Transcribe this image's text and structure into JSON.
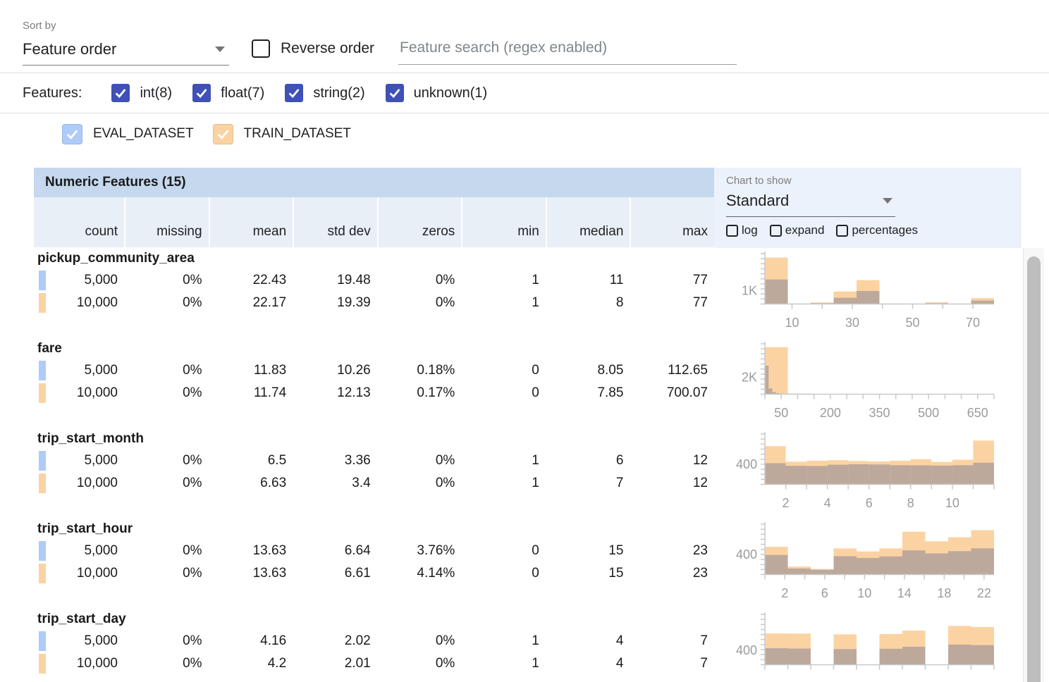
{
  "toolbar": {
    "sort_by_label": "Sort by",
    "sort_by_value": "Feature order",
    "reverse_order_label": "Reverse order",
    "search_placeholder": "Feature search (regex enabled)"
  },
  "features_filter": {
    "label": "Features:",
    "types": [
      {
        "label": "int(8)",
        "checked": true
      },
      {
        "label": "float(7)",
        "checked": true
      },
      {
        "label": "string(2)",
        "checked": true
      },
      {
        "label": "unknown(1)",
        "checked": true
      }
    ]
  },
  "datasets": [
    {
      "name": "EVAL_DATASET",
      "label": "EVAL_DATASET",
      "checked": true,
      "color": "#aecbfa"
    },
    {
      "name": "TRAIN_DATASET",
      "label": "TRAIN_DATASET",
      "checked": true,
      "color": "#fbd3a2"
    }
  ],
  "table": {
    "title": "Numeric Features (15)",
    "columns": [
      "count",
      "missing",
      "mean",
      "std dev",
      "zeros",
      "min",
      "median",
      "max"
    ],
    "chart_controls": {
      "label": "Chart to show",
      "value": "Standard",
      "options": [
        {
          "label": "log",
          "checked": false
        },
        {
          "label": "expand",
          "checked": false
        },
        {
          "label": "percentages",
          "checked": false
        }
      ]
    },
    "features": [
      {
        "name": "pickup_community_area",
        "rows": [
          {
            "dataset": "EVAL_DATASET",
            "values": [
              "5,000",
              "0%",
              "22.43",
              "19.48",
              "0%",
              "1",
              "11",
              "77"
            ]
          },
          {
            "dataset": "TRAIN_DATASET",
            "values": [
              "10,000",
              "0%",
              "22.17",
              "19.39",
              "0%",
              "1",
              "8",
              "77"
            ]
          }
        ]
      },
      {
        "name": "fare",
        "rows": [
          {
            "dataset": "EVAL_DATASET",
            "values": [
              "5,000",
              "0%",
              "11.83",
              "10.26",
              "0.18%",
              "0",
              "8.05",
              "112.65"
            ]
          },
          {
            "dataset": "TRAIN_DATASET",
            "values": [
              "10,000",
              "0%",
              "11.74",
              "12.13",
              "0.17%",
              "0",
              "7.85",
              "700.07"
            ]
          }
        ]
      },
      {
        "name": "trip_start_month",
        "rows": [
          {
            "dataset": "EVAL_DATASET",
            "values": [
              "5,000",
              "0%",
              "6.5",
              "3.36",
              "0%",
              "1",
              "6",
              "12"
            ]
          },
          {
            "dataset": "TRAIN_DATASET",
            "values": [
              "10,000",
              "0%",
              "6.63",
              "3.4",
              "0%",
              "1",
              "7",
              "12"
            ]
          }
        ]
      },
      {
        "name": "trip_start_hour",
        "rows": [
          {
            "dataset": "EVAL_DATASET",
            "values": [
              "5,000",
              "0%",
              "13.63",
              "6.64",
              "3.76%",
              "0",
              "15",
              "23"
            ]
          },
          {
            "dataset": "TRAIN_DATASET",
            "values": [
              "10,000",
              "0%",
              "13.63",
              "6.61",
              "4.14%",
              "0",
              "15",
              "23"
            ]
          }
        ]
      },
      {
        "name": "trip_start_day",
        "rows": [
          {
            "dataset": "EVAL_DATASET",
            "values": [
              "5,000",
              "0%",
              "4.16",
              "2.02",
              "0%",
              "1",
              "4",
              "7"
            ]
          },
          {
            "dataset": "TRAIN_DATASET",
            "values": [
              "10,000",
              "0%",
              "4.2",
              "2.01",
              "0%",
              "1",
              "4",
              "7"
            ]
          }
        ]
      }
    ]
  },
  "chart_data": [
    {
      "type": "bar",
      "feature": "pickup_community_area",
      "x_domain": [
        1,
        77
      ],
      "x_tick_labels": [
        10,
        30,
        50,
        70
      ],
      "x_minor_ticks": {
        "start": 10,
        "step": 10,
        "end": 70
      },
      "y_max": 3800,
      "y_axis_label": {
        "text": "1K",
        "value": 1000
      },
      "series": [
        {
          "name": "TRAIN_DATASET",
          "bin_start": 1,
          "bin_width": 7.6,
          "counts": [
            3500,
            40,
            120,
            950,
            1800,
            30,
            20,
            130,
            20,
            450
          ]
        },
        {
          "name": "EVAL_DATASET",
          "bin_start": 1,
          "bin_width": 7.6,
          "counts": [
            1850,
            25,
            60,
            470,
            980,
            15,
            10,
            60,
            10,
            260
          ]
        }
      ]
    },
    {
      "type": "bar",
      "feature": "fare",
      "x_domain": [
        0,
        700
      ],
      "x_tick_labels": [
        50,
        200,
        350,
        500,
        650
      ],
      "x_minor_ticks": {
        "start": 0,
        "step": 50,
        "end": 700
      },
      "y_max": 6000,
      "y_axis_label": {
        "text": "2K",
        "value": 2000
      },
      "series": [
        {
          "name": "TRAIN_DATASET",
          "bin_start": 0,
          "bin_width": 70,
          "counts": [
            5600,
            80,
            20,
            10,
            5,
            3,
            2,
            2,
            1,
            2
          ]
        },
        {
          "name": "EVAL_DATASET",
          "bin_start": 0,
          "bin_width": 11.265,
          "counts": [
            3400,
            700,
            250,
            120,
            60,
            30,
            20,
            10,
            5,
            5
          ]
        }
      ]
    },
    {
      "type": "bar",
      "feature": "trip_start_month",
      "x_domain": [
        1,
        12
      ],
      "x_tick_labels": [
        2,
        4,
        6,
        8,
        10
      ],
      "x_minor_ticks": {
        "start": 2,
        "step": 1,
        "end": 12
      },
      "y_max": 1000,
      "y_axis_label": {
        "text": "400",
        "value": 400
      },
      "series": [
        {
          "name": "TRAIN_DATASET",
          "bin_start": 1,
          "bin_width": 1,
          "counts": [
            760,
            450,
            470,
            480,
            465,
            455,
            470,
            500,
            445,
            490,
            870
          ]
        },
        {
          "name": "EVAL_DATASET",
          "bin_start": 1,
          "bin_width": 1,
          "counts": [
            420,
            370,
            365,
            390,
            400,
            395,
            380,
            378,
            372,
            380,
            430
          ]
        }
      ]
    },
    {
      "type": "bar",
      "feature": "trip_start_hour",
      "x_domain": [
        0,
        23
      ],
      "x_tick_labels": [
        2,
        6,
        10,
        14,
        18,
        22
      ],
      "x_minor_ticks": {
        "start": 0,
        "step": 2,
        "end": 22
      },
      "y_max": 1000,
      "y_axis_label": {
        "text": "400",
        "value": 400
      },
      "series": [
        {
          "name": "TRAIN_DATASET",
          "bin_start": 0,
          "bin_width": 2.3,
          "counts": [
            550,
            160,
            110,
            520,
            460,
            520,
            850,
            660,
            740,
            880
          ]
        },
        {
          "name": "EVAL_DATASET",
          "bin_start": 0,
          "bin_width": 2.3,
          "counts": [
            390,
            120,
            95,
            365,
            330,
            360,
            480,
            420,
            465,
            520
          ]
        }
      ]
    },
    {
      "type": "bar",
      "feature": "trip_start_day",
      "x_domain": [
        1,
        7
      ],
      "x_tick_labels": [],
      "x_minor_ticks": {
        "start": 1,
        "step": 0.6,
        "end": 7
      },
      "y_max": 1400,
      "y_axis_label": {
        "text": "400",
        "value": 400
      },
      "series": [
        {
          "name": "TRAIN_DATASET",
          "bin_start": 1,
          "bin_width": 0.6,
          "counts": [
            870,
            865,
            0,
            845,
            0,
            855,
            950,
            0,
            1080,
            1050
          ]
        },
        {
          "name": "EVAL_DATASET",
          "bin_start": 1,
          "bin_width": 0.6,
          "counts": [
            460,
            450,
            0,
            435,
            0,
            445,
            500,
            0,
            560,
            545
          ]
        }
      ]
    }
  ],
  "colors": {
    "accent_checkbox": "#3f51b5",
    "eval_dataset": "#aecbfa",
    "train_dataset": "#fbd3a2",
    "table_header_bg": "#c5d8ee",
    "column_header_bg": "#e9eff7",
    "chart_panel_bg": "#ecf2fb",
    "train_bar": "#fbd3a2",
    "eval_bar_overlay": "rgba(138,135,152,0.55)",
    "axis": "#c9c9c9",
    "tick_label": "#9b9b9b"
  }
}
